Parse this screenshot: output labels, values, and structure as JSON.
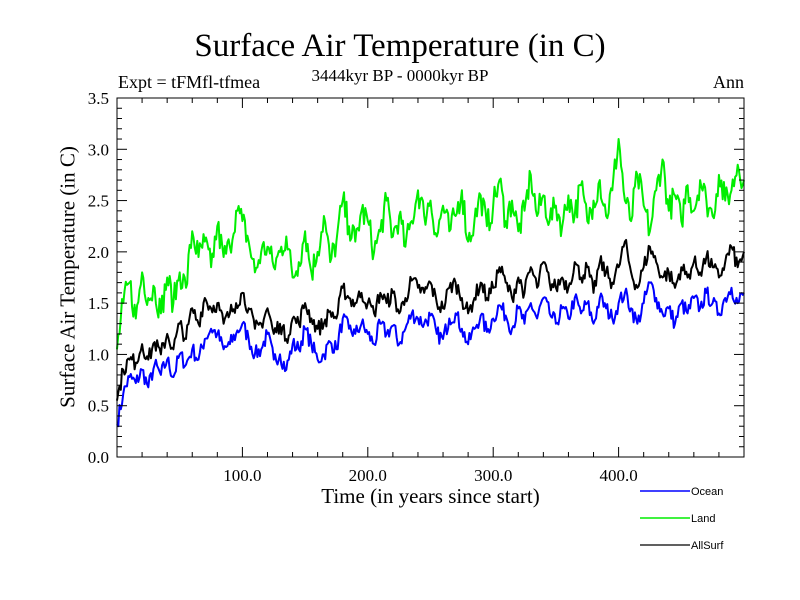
{
  "chart_data": {
    "type": "line",
    "title": "Surface Air Temperature (in C)",
    "subtitle": "3444kyr BP - 0000kyr BP",
    "left_annotation": "Expt = tFMfl-tfmea",
    "right_annotation": "Ann",
    "xlabel": "Time (in years since start)",
    "ylabel": "Surface Air Temperature (in C)",
    "xlim": [
      0,
      500
    ],
    "ylim": [
      0.0,
      3.5
    ],
    "xticks": [
      100,
      200,
      300,
      400
    ],
    "xtick_labels": [
      "100.0",
      "200.0",
      "300.0",
      "400.0"
    ],
    "xminor_step": 20,
    "yticks": [
      0.0,
      0.5,
      1.0,
      1.5,
      2.0,
      2.5,
      3.0,
      3.5
    ],
    "ytick_labels": [
      "0.0",
      "0.5",
      "1.0",
      "1.5",
      "2.0",
      "2.5",
      "3.0",
      "3.5"
    ],
    "yminor_step": 0.1,
    "grid": false,
    "legend_position": "bottom-right-outside",
    "x": [
      0,
      5,
      10,
      15,
      20,
      25,
      30,
      35,
      40,
      45,
      50,
      55,
      60,
      65,
      70,
      75,
      80,
      85,
      90,
      95,
      100,
      105,
      110,
      115,
      120,
      125,
      130,
      135,
      140,
      145,
      150,
      155,
      160,
      165,
      170,
      175,
      180,
      185,
      190,
      195,
      200,
      205,
      210,
      215,
      220,
      225,
      230,
      235,
      240,
      245,
      250,
      255,
      260,
      265,
      270,
      275,
      280,
      285,
      290,
      295,
      300,
      305,
      310,
      315,
      320,
      325,
      330,
      335,
      340,
      345,
      350,
      355,
      360,
      365,
      370,
      375,
      380,
      385,
      390,
      395,
      400,
      405,
      410,
      415,
      420,
      425,
      430,
      435,
      440,
      445,
      450,
      455,
      460,
      465,
      470,
      475,
      480,
      485,
      490,
      495,
      500
    ],
    "series": [
      {
        "name": "Ocean",
        "color": "#0000ff",
        "values": [
          0.32,
          0.62,
          0.78,
          0.72,
          0.85,
          0.68,
          0.9,
          0.8,
          0.95,
          0.78,
          1.0,
          0.9,
          1.05,
          0.95,
          1.15,
          1.25,
          1.2,
          1.05,
          1.1,
          1.2,
          1.3,
          1.15,
          1.0,
          1.05,
          1.2,
          0.95,
          1.0,
          0.85,
          1.1,
          1.05,
          1.25,
          1.1,
          0.95,
          1.0,
          1.12,
          1.05,
          1.35,
          1.25,
          1.2,
          1.3,
          1.2,
          1.1,
          1.3,
          1.2,
          1.28,
          1.1,
          1.25,
          1.4,
          1.35,
          1.3,
          1.38,
          1.2,
          1.15,
          1.35,
          1.4,
          1.25,
          1.1,
          1.25,
          1.38,
          1.22,
          1.35,
          1.48,
          1.38,
          1.25,
          1.45,
          1.3,
          1.5,
          1.35,
          1.55,
          1.4,
          1.3,
          1.45,
          1.35,
          1.55,
          1.4,
          1.5,
          1.3,
          1.55,
          1.45,
          1.35,
          1.5,
          1.6,
          1.45,
          1.3,
          1.5,
          1.7,
          1.55,
          1.4,
          1.45,
          1.3,
          1.5,
          1.4,
          1.55,
          1.45,
          1.6,
          1.5,
          1.4,
          1.55,
          1.65,
          1.5,
          1.6
        ]
      },
      {
        "name": "Land",
        "color": "#00ee00",
        "values": [
          1.05,
          1.5,
          1.7,
          1.35,
          1.8,
          1.55,
          1.65,
          1.4,
          1.75,
          1.5,
          1.8,
          1.65,
          2.2,
          1.95,
          2.1,
          1.85,
          2.25,
          1.95,
          2.05,
          2.4,
          2.3,
          2.1,
          1.8,
          2.0,
          2.05,
          1.85,
          2.0,
          2.15,
          1.75,
          1.9,
          2.2,
          1.8,
          2.0,
          2.35,
          1.9,
          2.1,
          2.5,
          2.25,
          2.1,
          2.4,
          2.3,
          2.0,
          2.2,
          2.5,
          2.15,
          2.35,
          2.05,
          2.3,
          2.6,
          2.35,
          2.5,
          2.15,
          2.45,
          2.2,
          2.35,
          2.6,
          2.1,
          2.3,
          2.55,
          2.25,
          2.45,
          2.7,
          2.3,
          2.5,
          2.2,
          2.4,
          2.75,
          2.35,
          2.55,
          2.3,
          2.45,
          2.25,
          2.55,
          2.35,
          2.65,
          2.3,
          2.5,
          2.7,
          2.35,
          2.6,
          3.1,
          2.5,
          2.3,
          2.75,
          2.45,
          2.2,
          2.6,
          2.9,
          2.4,
          2.55,
          2.3,
          2.65,
          2.4,
          2.7,
          2.5,
          2.35,
          2.75,
          2.5,
          2.6,
          2.85,
          2.7
        ]
      },
      {
        "name": "AllSurf",
        "color": "#000000",
        "values": [
          0.55,
          0.85,
          0.95,
          0.92,
          1.1,
          0.95,
          1.12,
          1.0,
          1.2,
          1.05,
          1.3,
          1.15,
          1.45,
          1.3,
          1.55,
          1.45,
          1.5,
          1.3,
          1.4,
          1.5,
          1.6,
          1.45,
          1.25,
          1.3,
          1.45,
          1.2,
          1.3,
          1.15,
          1.35,
          1.3,
          1.5,
          1.35,
          1.25,
          1.3,
          1.42,
          1.35,
          1.65,
          1.55,
          1.5,
          1.6,
          1.5,
          1.4,
          1.6,
          1.5,
          1.6,
          1.4,
          1.55,
          1.72,
          1.65,
          1.6,
          1.7,
          1.5,
          1.45,
          1.65,
          1.7,
          1.55,
          1.4,
          1.55,
          1.7,
          1.55,
          1.65,
          1.85,
          1.7,
          1.55,
          1.75,
          1.6,
          1.85,
          1.65,
          1.9,
          1.7,
          1.65,
          1.75,
          1.65,
          1.9,
          1.75,
          1.85,
          1.6,
          1.9,
          1.8,
          1.7,
          1.85,
          2.1,
          1.8,
          1.65,
          1.85,
          2.05,
          1.9,
          1.75,
          1.8,
          1.65,
          1.85,
          1.75,
          1.9,
          1.8,
          1.95,
          1.85,
          1.75,
          1.9,
          2.05,
          1.85,
          2.0
        ]
      }
    ]
  }
}
